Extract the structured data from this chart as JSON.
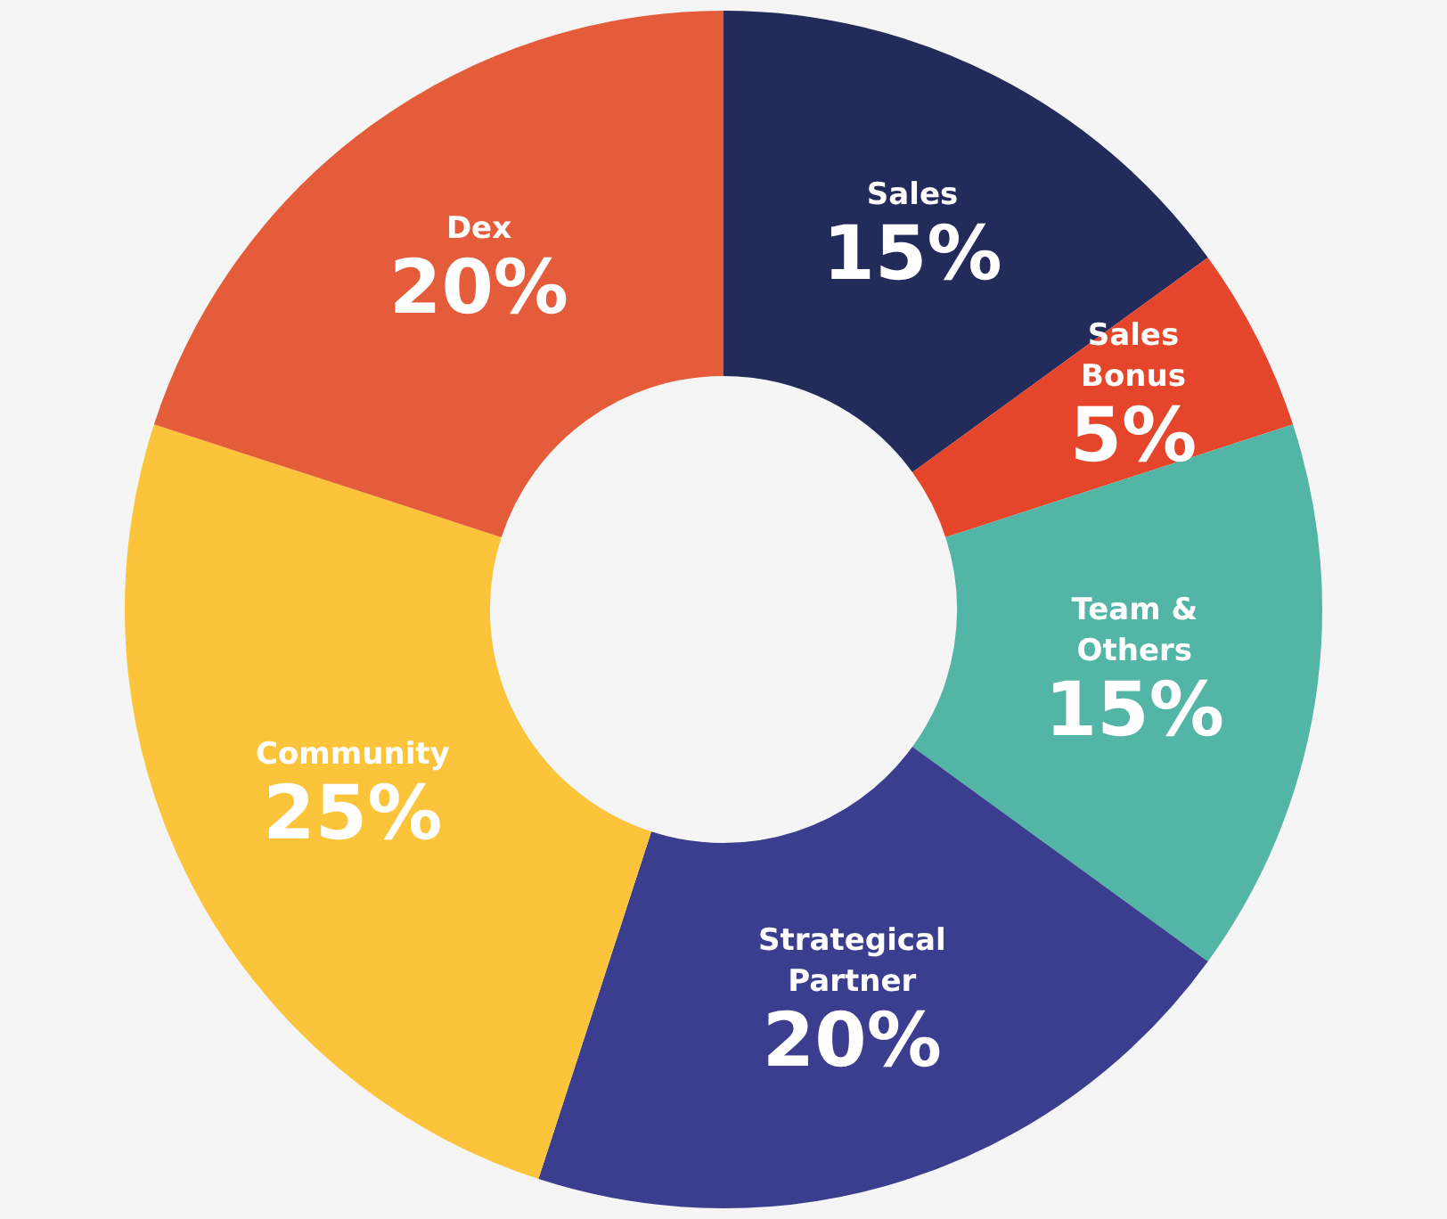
{
  "chart_data": {
    "type": "donut",
    "categories": [
      "Sales",
      "Sales Bonus",
      "Team & Others",
      "Strategical Partner",
      "Community",
      "Dex"
    ],
    "values": [
      15,
      5,
      15,
      20,
      25,
      20
    ],
    "colors": [
      "#232b5a",
      "#e5452a",
      "#52b5a5",
      "#3b3d8f",
      "#fbc43b",
      "#e45c3a"
    ],
    "value_labels": [
      "15%",
      "5%",
      "15%",
      "20%",
      "25%",
      "20%"
    ],
    "legend": false
  }
}
